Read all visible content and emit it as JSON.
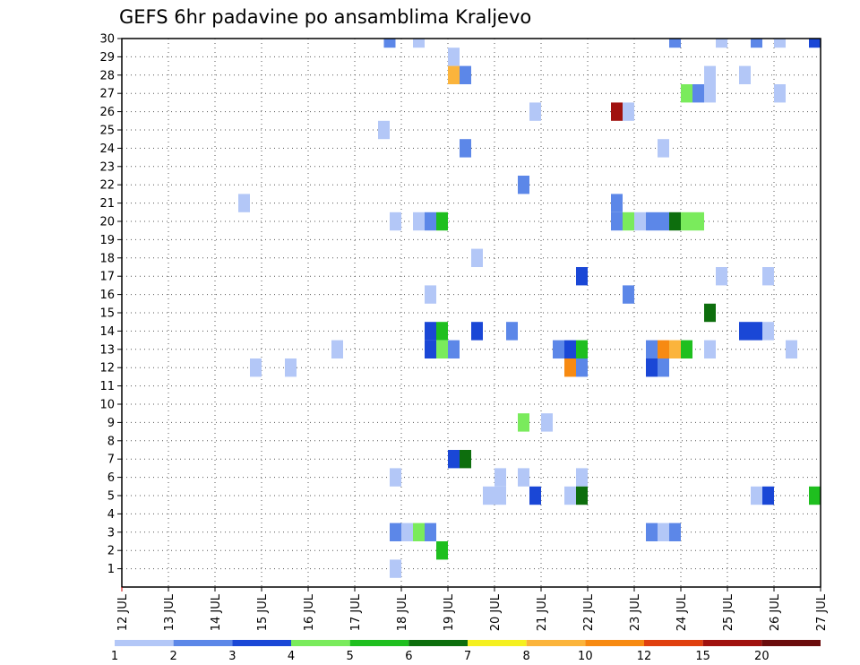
{
  "chart_data": {
    "type": "heatmap",
    "title": "GEFS 6hr padavine po ansamblima Kraljevo",
    "xlabel": "",
    "ylabel": "",
    "x_ticks": [
      "12 JUL",
      "13 JUL",
      "14 JUL",
      "15 JUL",
      "16 JUL",
      "17 JUL",
      "18 JUL",
      "19 JUL",
      "20 JUL",
      "21 JUL",
      "22 JUL",
      "23 JUL",
      "24 JUL",
      "25 JUL",
      "26 JUL",
      "27 JUL"
    ],
    "xlim": [
      12,
      27
    ],
    "y_ticks": [
      "1",
      "2",
      "3",
      "4",
      "5",
      "6",
      "7",
      "8",
      "9",
      "10",
      "11",
      "12",
      "13",
      "14",
      "15",
      "16",
      "17",
      "18",
      "19",
      "20",
      "21",
      "22",
      "23",
      "24",
      "25",
      "26",
      "27",
      "28",
      "29",
      "30"
    ],
    "ylim": [
      0,
      30
    ],
    "grid": true,
    "colorbar": {
      "labels": [
        "1",
        "2",
        "3",
        "4",
        "5",
        "6",
        "7",
        "8",
        "10",
        "12",
        "15",
        "20"
      ],
      "colors": [
        "#b3c7f7",
        "#5c87e8",
        "#1a47d6",
        "#7aeb5c",
        "#1fbf1f",
        "#0d6e0d",
        "#f5f01f",
        "#fbb43c",
        "#f78a12",
        "#e0400f",
        "#a0120f",
        "#6b0c0c"
      ]
    },
    "cells": [
      {
        "x": 17.75,
        "y": 30,
        "v": 2
      },
      {
        "x": 18.375,
        "y": 30,
        "v": 1
      },
      {
        "x": 23.875,
        "y": 30,
        "v": 2
      },
      {
        "x": 24.875,
        "y": 30,
        "v": 1
      },
      {
        "x": 25.625,
        "y": 30,
        "v": 2
      },
      {
        "x": 26.125,
        "y": 30,
        "v": 1
      },
      {
        "x": 26.875,
        "y": 30,
        "v": 3
      },
      {
        "x": 19.125,
        "y": 29,
        "v": 1
      },
      {
        "x": 19.125,
        "y": 28,
        "v": 8
      },
      {
        "x": 19.375,
        "y": 28,
        "v": 2
      },
      {
        "x": 24.625,
        "y": 28,
        "v": 1
      },
      {
        "x": 25.375,
        "y": 28,
        "v": 1
      },
      {
        "x": 24.125,
        "y": 27,
        "v": 4
      },
      {
        "x": 24.375,
        "y": 27,
        "v": 2
      },
      {
        "x": 24.625,
        "y": 27,
        "v": 1
      },
      {
        "x": 26.125,
        "y": 27,
        "v": 1
      },
      {
        "x": 20.875,
        "y": 26,
        "v": 1
      },
      {
        "x": 22.625,
        "y": 26,
        "v": 15
      },
      {
        "x": 22.875,
        "y": 26,
        "v": 1
      },
      {
        "x": 17.625,
        "y": 25,
        "v": 1
      },
      {
        "x": 19.375,
        "y": 24,
        "v": 2
      },
      {
        "x": 23.625,
        "y": 24,
        "v": 1
      },
      {
        "x": 20.625,
        "y": 22,
        "v": 2
      },
      {
        "x": 14.625,
        "y": 21,
        "v": 1
      },
      {
        "x": 22.625,
        "y": 21,
        "v": 2
      },
      {
        "x": 17.875,
        "y": 20,
        "v": 1
      },
      {
        "x": 18.375,
        "y": 20,
        "v": 1
      },
      {
        "x": 18.625,
        "y": 20,
        "v": 2
      },
      {
        "x": 18.875,
        "y": 20,
        "v": 5
      },
      {
        "x": 22.625,
        "y": 20,
        "v": 2
      },
      {
        "x": 22.875,
        "y": 20,
        "v": 4
      },
      {
        "x": 23.125,
        "y": 20,
        "v": 1
      },
      {
        "x": 23.375,
        "y": 20,
        "v": 2
      },
      {
        "x": 23.625,
        "y": 20,
        "v": 2
      },
      {
        "x": 23.875,
        "y": 20,
        "v": 6
      },
      {
        "x": 24.125,
        "y": 20,
        "v": 4
      },
      {
        "x": 24.375,
        "y": 20,
        "v": 4
      },
      {
        "x": 19.625,
        "y": 18,
        "v": 1
      },
      {
        "x": 21.875,
        "y": 17,
        "v": 3
      },
      {
        "x": 24.875,
        "y": 17,
        "v": 1
      },
      {
        "x": 25.875,
        "y": 17,
        "v": 1
      },
      {
        "x": 18.625,
        "y": 16,
        "v": 1
      },
      {
        "x": 22.875,
        "y": 16,
        "v": 2
      },
      {
        "x": 24.625,
        "y": 15,
        "v": 6
      },
      {
        "x": 18.625,
        "y": 14,
        "v": 3
      },
      {
        "x": 18.875,
        "y": 14,
        "v": 5
      },
      {
        "x": 19.625,
        "y": 14,
        "v": 3
      },
      {
        "x": 20.375,
        "y": 14,
        "v": 2
      },
      {
        "x": 25.375,
        "y": 14,
        "v": 3
      },
      {
        "x": 25.625,
        "y": 14,
        "v": 3
      },
      {
        "x": 25.875,
        "y": 14,
        "v": 1
      },
      {
        "x": 18.625,
        "y": 13,
        "v": 3
      },
      {
        "x": 18.875,
        "y": 13,
        "v": 4
      },
      {
        "x": 19.125,
        "y": 13,
        "v": 2
      },
      {
        "x": 16.625,
        "y": 13,
        "v": 1
      },
      {
        "x": 21.375,
        "y": 13,
        "v": 2
      },
      {
        "x": 21.625,
        "y": 13,
        "v": 3
      },
      {
        "x": 21.875,
        "y": 13,
        "v": 5
      },
      {
        "x": 23.375,
        "y": 13,
        "v": 2
      },
      {
        "x": 23.625,
        "y": 13,
        "v": 10
      },
      {
        "x": 23.875,
        "y": 13,
        "v": 8
      },
      {
        "x": 24.125,
        "y": 13,
        "v": 5
      },
      {
        "x": 24.625,
        "y": 13,
        "v": 1
      },
      {
        "x": 26.375,
        "y": 13,
        "v": 1
      },
      {
        "x": 14.875,
        "y": 12,
        "v": 1
      },
      {
        "x": 15.625,
        "y": 12,
        "v": 1
      },
      {
        "x": 21.625,
        "y": 12,
        "v": 10
      },
      {
        "x": 21.875,
        "y": 12,
        "v": 2
      },
      {
        "x": 23.375,
        "y": 12,
        "v": 3
      },
      {
        "x": 23.625,
        "y": 12,
        "v": 2
      },
      {
        "x": 20.625,
        "y": 9,
        "v": 4
      },
      {
        "x": 21.125,
        "y": 9,
        "v": 1
      },
      {
        "x": 19.125,
        "y": 7,
        "v": 3
      },
      {
        "x": 19.375,
        "y": 7,
        "v": 6
      },
      {
        "x": 17.875,
        "y": 6,
        "v": 1
      },
      {
        "x": 20.125,
        "y": 6,
        "v": 1
      },
      {
        "x": 20.625,
        "y": 6,
        "v": 1
      },
      {
        "x": 21.875,
        "y": 6,
        "v": 1
      },
      {
        "x": 19.875,
        "y": 5,
        "v": 1
      },
      {
        "x": 20.125,
        "y": 5,
        "v": 1
      },
      {
        "x": 20.875,
        "y": 5,
        "v": 3
      },
      {
        "x": 21.625,
        "y": 5,
        "v": 1
      },
      {
        "x": 21.875,
        "y": 5,
        "v": 6
      },
      {
        "x": 25.625,
        "y": 5,
        "v": 1
      },
      {
        "x": 25.875,
        "y": 5,
        "v": 3
      },
      {
        "x": 26.875,
        "y": 5,
        "v": 5
      },
      {
        "x": 17.875,
        "y": 3,
        "v": 2
      },
      {
        "x": 18.125,
        "y": 3,
        "v": 1
      },
      {
        "x": 18.375,
        "y": 3,
        "v": 4
      },
      {
        "x": 18.625,
        "y": 3,
        "v": 2
      },
      {
        "x": 23.375,
        "y": 3,
        "v": 2
      },
      {
        "x": 23.625,
        "y": 3,
        "v": 1
      },
      {
        "x": 23.875,
        "y": 3,
        "v": 2
      },
      {
        "x": 18.875,
        "y": 2,
        "v": 5
      },
      {
        "x": 17.875,
        "y": 1,
        "v": 1
      }
    ]
  }
}
